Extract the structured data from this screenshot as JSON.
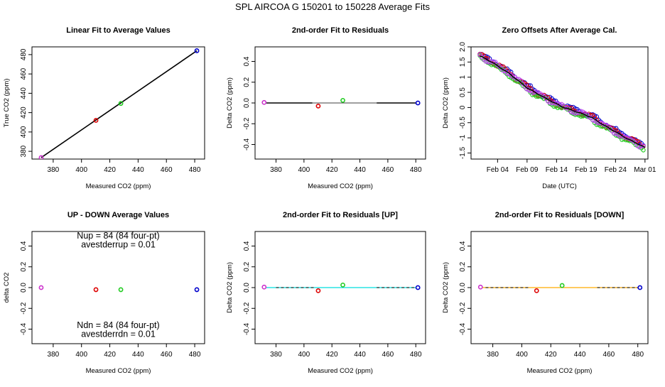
{
  "figure": {
    "title": "SPL   AIRCOA G   150201 to 150228   Average Fits"
  },
  "chart_data": [
    {
      "id": "p1",
      "type": "scatter",
      "title": "Linear Fit to Average Values",
      "xlabel": "Measured CO2 (ppm)",
      "ylabel": "True CO2 (ppm)",
      "xlim": [
        365,
        487
      ],
      "ylim": [
        372,
        488
      ],
      "xticks": [
        380,
        400,
        420,
        440,
        460,
        480
      ],
      "yticks": [
        380,
        400,
        420,
        440,
        460,
        480
      ],
      "points": [
        {
          "x": 371.5,
          "y": 373.5,
          "color": "#cc33cc"
        },
        {
          "x": 410.2,
          "y": 412.0,
          "color": "#dd0000"
        },
        {
          "x": 427.8,
          "y": 429.5,
          "color": "#22cc22"
        },
        {
          "x": 481.5,
          "y": 484.0,
          "color": "#0000cc"
        }
      ],
      "lines": [
        {
          "x": [
            371.5,
            481.5
          ],
          "y": [
            373.5,
            484.0
          ],
          "color": "#000000",
          "width": 1.6
        }
      ]
    },
    {
      "id": "p2",
      "type": "scatter",
      "title": "2nd-order Fit to Residuals",
      "xlabel": "Measured CO2 (ppm)",
      "ylabel": "Delta CO2 (ppm)",
      "xlim": [
        365,
        487
      ],
      "ylim": [
        -0.54,
        0.54
      ],
      "xticks": [
        380,
        400,
        420,
        440,
        460,
        480
      ],
      "yticks": [
        -0.4,
        -0.2,
        0.0,
        0.2,
        0.4
      ],
      "points": [
        {
          "x": 371.5,
          "y": 0.005,
          "color": "#cc33cc"
        },
        {
          "x": 410.2,
          "y": -0.03,
          "color": "#dd0000"
        },
        {
          "x": 427.8,
          "y": 0.025,
          "color": "#22cc22"
        },
        {
          "x": 481.5,
          "y": 0.0,
          "color": "#0000cc"
        }
      ],
      "lines": [
        {
          "x": [
            373,
            406
          ],
          "y": [
            0.0,
            0.0
          ],
          "color": "#000000",
          "width": 1.6
        },
        {
          "x": [
            406,
            452
          ],
          "y": [
            0.0,
            0.0
          ],
          "color": "#000000",
          "width": 0.8
        },
        {
          "x": [
            452,
            480
          ],
          "y": [
            0.0,
            0.0
          ],
          "color": "#000000",
          "width": 1.6
        }
      ]
    },
    {
      "id": "p3",
      "type": "scatter",
      "title": "Zero Offsets After Average Cal.",
      "xlabel": "Date (UTC)",
      "ylabel": "Delta CO2 (ppm)",
      "xlim": [
        -1.5,
        28.5
      ],
      "ylim": [
        -1.7,
        2.0
      ],
      "xticks": [
        3,
        8,
        13,
        18,
        23,
        28
      ],
      "xticklabels": [
        "Feb 04",
        "Feb 09",
        "Feb 14",
        "Feb 19",
        "Feb 24",
        "Mar 01"
      ],
      "yticks": [
        -1.5,
        -1.0,
        -0.5,
        0.0,
        0.5,
        1.0,
        1.5,
        2.0
      ],
      "yticklabels": [
        "-1.5",
        "-1",
        "-0.5",
        "0",
        "0.5",
        "1",
        "1.5",
        "2.0"
      ],
      "trend": {
        "x": [
          0,
          2,
          5,
          8,
          11,
          14,
          17,
          19,
          21,
          23,
          25,
          27,
          28
        ],
        "y": [
          1.7,
          1.5,
          1.12,
          0.65,
          0.32,
          0.02,
          -0.18,
          -0.33,
          -0.58,
          -0.8,
          -1.03,
          -1.22,
          -1.32
        ]
      },
      "series": [
        {
          "color": "#0000cc",
          "offset": 0.06
        },
        {
          "color": "#dd0000",
          "offset": 0.02
        },
        {
          "color": "#22cc22",
          "offset": -0.06
        },
        {
          "color": "#bb44ee",
          "offset": 0.0
        }
      ]
    },
    {
      "id": "p4",
      "type": "scatter",
      "title": "UP - DOWN Average Values",
      "xlabel": "Measured CO2 (ppm)",
      "ylabel": "delta CO2",
      "xlim": [
        365,
        487
      ],
      "ylim": [
        -0.54,
        0.54
      ],
      "xticks": [
        380,
        400,
        420,
        440,
        460,
        480
      ],
      "yticks": [
        -0.4,
        -0.2,
        0.0,
        0.2,
        0.4
      ],
      "points": [
        {
          "x": 371.5,
          "y": 0.0,
          "color": "#cc33cc"
        },
        {
          "x": 410.2,
          "y": -0.02,
          "color": "#dd0000"
        },
        {
          "x": 427.8,
          "y": -0.02,
          "color": "#22cc22"
        },
        {
          "x": 481.5,
          "y": -0.02,
          "color": "#0000cc"
        }
      ],
      "annotations": [
        {
          "text": "Nup = 84 (84 four-pt)",
          "x": 426,
          "y": 0.47
        },
        {
          "text": "avestderrup =  0.01",
          "x": 426,
          "y": 0.385
        },
        {
          "text": "Ndn = 84 (84 four-pt)",
          "x": 426,
          "y": -0.39
        },
        {
          "text": "avestderrdn =  0.01",
          "x": 426,
          "y": -0.475
        }
      ]
    },
    {
      "id": "p5",
      "type": "scatter",
      "title": "2nd-order Fit to Residuals [UP]",
      "xlabel": "Measured CO2 (ppm)",
      "ylabel": "Delta CO2 (ppm)",
      "xlim": [
        365,
        487
      ],
      "ylim": [
        -0.54,
        0.54
      ],
      "xticks": [
        380,
        400,
        420,
        440,
        460,
        480
      ],
      "yticks": [
        -0.4,
        -0.2,
        0.0,
        0.2,
        0.4
      ],
      "points": [
        {
          "x": 371.5,
          "y": 0.005,
          "color": "#cc33cc"
        },
        {
          "x": 410.2,
          "y": -0.03,
          "color": "#dd0000"
        },
        {
          "x": 427.8,
          "y": 0.025,
          "color": "#22cc22"
        },
        {
          "x": 481.5,
          "y": 0.0,
          "color": "#0000cc"
        }
      ],
      "lines": [
        {
          "x": [
            373,
            480
          ],
          "y": [
            0.0,
            0.0
          ],
          "color": "#00dddd",
          "width": 1.3
        },
        {
          "x": [
            380,
            408
          ],
          "y": [
            0.0,
            0.0
          ],
          "color": "#000000",
          "width": 1.0,
          "dash": "4,3"
        },
        {
          "x": [
            452,
            480
          ],
          "y": [
            0.0,
            0.0
          ],
          "color": "#000000",
          "width": 1.0,
          "dash": "4,3"
        }
      ]
    },
    {
      "id": "p6",
      "type": "scatter",
      "title": "2nd-order Fit to Residuals [DOWN]",
      "xlabel": "Measured CO2 (ppm)",
      "ylabel": "Delta CO2 (ppm)",
      "xlim": [
        365,
        487
      ],
      "ylim": [
        -0.54,
        0.54
      ],
      "xticks": [
        380,
        400,
        420,
        440,
        460,
        480
      ],
      "yticks": [
        -0.4,
        -0.2,
        0.0,
        0.2,
        0.4
      ],
      "points": [
        {
          "x": 371.5,
          "y": 0.005,
          "color": "#cc33cc"
        },
        {
          "x": 410.2,
          "y": -0.03,
          "color": "#dd0000"
        },
        {
          "x": 427.8,
          "y": 0.02,
          "color": "#22cc22"
        },
        {
          "x": 481.5,
          "y": 0.0,
          "color": "#0000cc"
        }
      ],
      "lines": [
        {
          "x": [
            373,
            480
          ],
          "y": [
            0.0,
            0.0
          ],
          "color": "#ffaa00",
          "width": 1.3
        },
        {
          "x": [
            375,
            405
          ],
          "y": [
            0.0,
            0.0
          ],
          "color": "#000000",
          "width": 1.0,
          "dash": "4,3"
        },
        {
          "x": [
            452,
            480
          ],
          "y": [
            0.0,
            0.0
          ],
          "color": "#000000",
          "width": 1.0,
          "dash": "4,3"
        }
      ]
    }
  ]
}
